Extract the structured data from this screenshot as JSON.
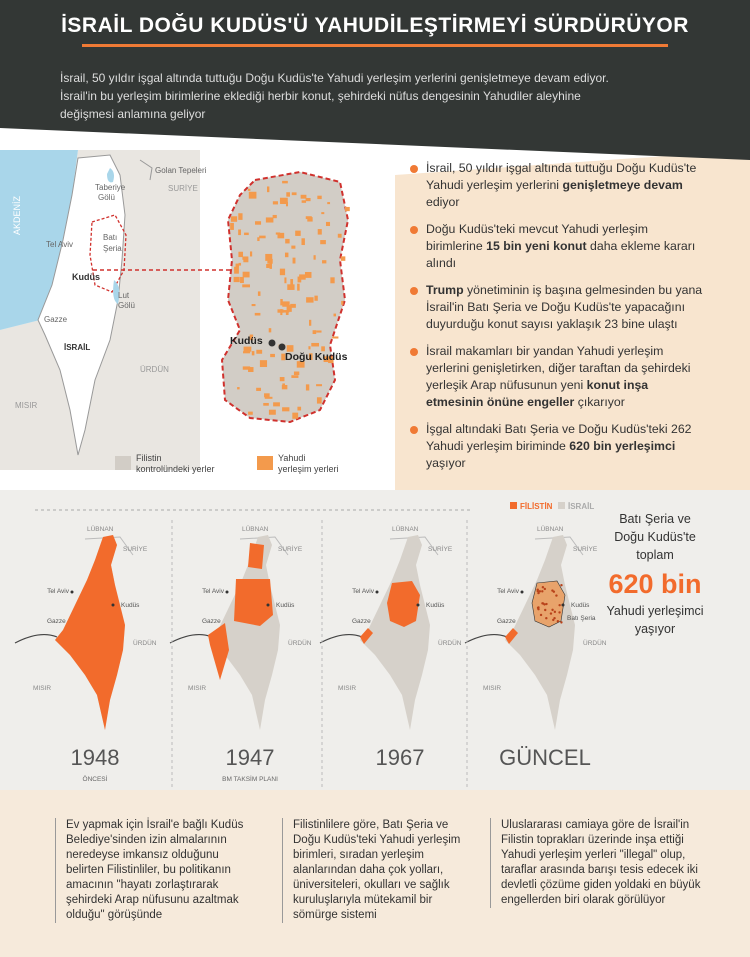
{
  "header": {
    "title": "İSRAİL DOĞU KUDÜS'Ü YAHUDİLEŞTİRMEYİ SÜRDÜRÜYOR",
    "subtitle": [
      "İsrail, 50 yıldır işgal altında tuttuğu Doğu Kudüs'te Yahudi yerleşim yerlerini genişletmeye devam ediyor.",
      "İsrail'in bu yerleşim birimlerine eklediği herbir konut, şehirdeki nüfus dengesinin Yahudiler aleyhine",
      "değişmesi anlamına geliyor"
    ]
  },
  "locator_map": {
    "golan": "Golan Tepeleri",
    "syria": "SURİYE",
    "tiberias": [
      "Taberiye",
      "Gölü"
    ],
    "sea": "AKDENİZ",
    "west_bank": [
      "Batı",
      "Şeria"
    ],
    "tel_aviv": "Tel Aviv",
    "jerusalem": "Kudüs",
    "dead_sea": [
      "Lut",
      "Gölü"
    ],
    "gaza": "Gazze",
    "israel": "İSRAİL",
    "jordan": "ÜRDÜN",
    "egypt": "MISIR",
    "detail_jerusalem": "Kudüs",
    "detail_east_jerusalem": "Doğu Kudüs",
    "legend": [
      [
        "Filistin",
        "kontrolündeki yerler"
      ],
      [
        "Yahudi",
        "yerleşim yerleri"
      ]
    ]
  },
  "bullets": [
    [
      {
        "text": "İsrail, 50 yıldır işgal altında tuttuğu Doğu Kudüs'te Yahudi yerleşim yerlerini ",
        "bold": false
      },
      {
        "text": "genişletmeye devam",
        "bold": true
      },
      {
        "text": " ediyor",
        "bold": false
      }
    ],
    [
      {
        "text": "Doğu Kudüs'teki mevcut Yahudi yerleşim birimlerine ",
        "bold": false
      },
      {
        "text": "15 bin yeni konut",
        "bold": true
      },
      {
        "text": " daha ekleme kararı alındı",
        "bold": false
      }
    ],
    [
      {
        "text": "Trump",
        "bold": true
      },
      {
        "text": " yönetiminin iş başına gelmesinden bu yana İsrail'in Batı Şeria ve Doğu Kudüs'te yapacağını duyurduğu konut sayısı yaklaşık 23 bine ulaştı",
        "bold": false
      }
    ],
    [
      {
        "text": "İsrail makamları bir yandan Yahudi yerleşim yerlerini genişletirken, diğer taraftan da şehirdeki yerleşik Arap nüfusunun yeni ",
        "bold": false
      },
      {
        "text": "konut inşa etmesinin önüne engeller",
        "bold": true
      },
      {
        "text": " çıkarıyor",
        "bold": false
      }
    ],
    [
      {
        "text": "İşgal altındaki Batı Şeria ve Doğu Kudüs'teki 262 Yahudi yerleşim biriminde ",
        "bold": false
      },
      {
        "text": "620 bin yerleşimci",
        "bold": true
      },
      {
        "text": " yaşıyor",
        "bold": false
      }
    ]
  ],
  "history": {
    "legend": [
      "FİLİSTİN",
      "İSRAİL"
    ],
    "map_labels": {
      "lebanon": "LÜBNAN",
      "syria": "SURİYE",
      "tel_aviv": "Tel Aviv",
      "jerusalem": "Kudüs",
      "gaza": "Gazze",
      "jordan": "ÜRDÜN",
      "egypt": "MISIR",
      "west_bank": "Batı Şeria"
    },
    "maps": [
      {
        "year": "1948",
        "note": "ÖNCESİ"
      },
      {
        "year": "1947",
        "note": "BM TAKSİM PLANI"
      },
      {
        "year": "1967"
      },
      {
        "year": "GÜNCEL"
      }
    ],
    "total": {
      "lines": [
        "Batı Şeria ve",
        "Doğu Kudüs'te",
        "toplam"
      ],
      "number": "620 bin",
      "tail": [
        "Yahudi yerleşimci",
        "yaşıyor"
      ]
    }
  },
  "columns": [
    "Ev yapmak için İsrail'e bağlı Kudüs Belediye'sinden izin almalarının neredeyse imkansız olduğunu belirten Filistinliler, bu politikanın amacının \"hayatı zorlaştırarak şehirdeki Arap nüfusunu azaltmak olduğu\" görüşünde",
    "Filistinlilere göre, Batı Şeria ve Doğu Kudüs'teki Yahudi yerleşim birimleri, sıradan yerleşim alanlarından daha çok yolları, üniversiteleri, okulları ve sağlık kuruluşlarıyla mütekamil bir sömürge sistemi",
    "Uluslararası camiaya göre de İsrail'in Filistin toprakları üzerinde inşa ettiği Yahudi yerleşim yerleri \"illegal\" olup, taraflar arasında barışı tesis edecek iki devletli çözüme giden yoldaki en büyük engellerden biri olarak görülüyor"
  ]
}
